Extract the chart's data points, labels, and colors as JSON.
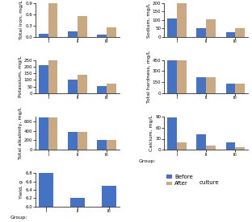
{
  "groups": [
    "I",
    "II",
    "III"
  ],
  "total_iron": {
    "ylabel": "Total Iron, mg/L",
    "before": [
      0.07,
      0.15,
      0.05
    ],
    "after": [
      0.9,
      0.55,
      0.25
    ],
    "ylim": [
      0,
      0.9
    ],
    "yticks": [
      0,
      0.3,
      0.6,
      0.9
    ]
  },
  "sodium": {
    "ylabel": "Sodium, mg/L",
    "before": [
      110,
      52,
      28
    ],
    "after": [
      205,
      105,
      50
    ],
    "ylim": [
      0,
      200
    ],
    "yticks": [
      0,
      50,
      100,
      150,
      200
    ]
  },
  "potassium": {
    "ylabel": "Potassium, mg/L",
    "before": [
      210,
      105,
      52
    ],
    "after": [
      270,
      140,
      70
    ],
    "ylim": [
      0,
      250
    ],
    "yticks": [
      0,
      50,
      100,
      150,
      200,
      250
    ]
  },
  "total_hardness": {
    "ylabel": "Total hardness, mg/L",
    "before": [
      460,
      220,
      130
    ],
    "after": [
      445,
      215,
      125
    ],
    "ylim": [
      0,
      450
    ],
    "yticks": [
      0,
      150,
      300,
      450
    ]
  },
  "total_alkalinity": {
    "ylabel": "Total alkalinity, mg/L",
    "before": [
      680,
      380,
      200
    ],
    "after": [
      680,
      385,
      205
    ],
    "ylim": [
      0,
      700
    ],
    "yticks": [
      0,
      200,
      400,
      600
    ]
  },
  "calcium": {
    "ylabel": "Calcium, mg/L",
    "before": [
      88,
      42,
      20
    ],
    "after": [
      20,
      12,
      8
    ],
    "ylim": [
      0,
      90
    ],
    "yticks": [
      0,
      30,
      60,
      90
    ]
  },
  "yield": {
    "ylabel": "Yield, g",
    "before": [
      6.8,
      6.2,
      6.5
    ],
    "ylim": [
      6.0,
      6.8
    ],
    "yticks": [
      6.0,
      6.2,
      6.4,
      6.6,
      6.8
    ]
  },
  "color_before": "#4472c4",
  "color_after": "#c9a882",
  "bar_width": 0.32,
  "xlabel_group": "Group:"
}
